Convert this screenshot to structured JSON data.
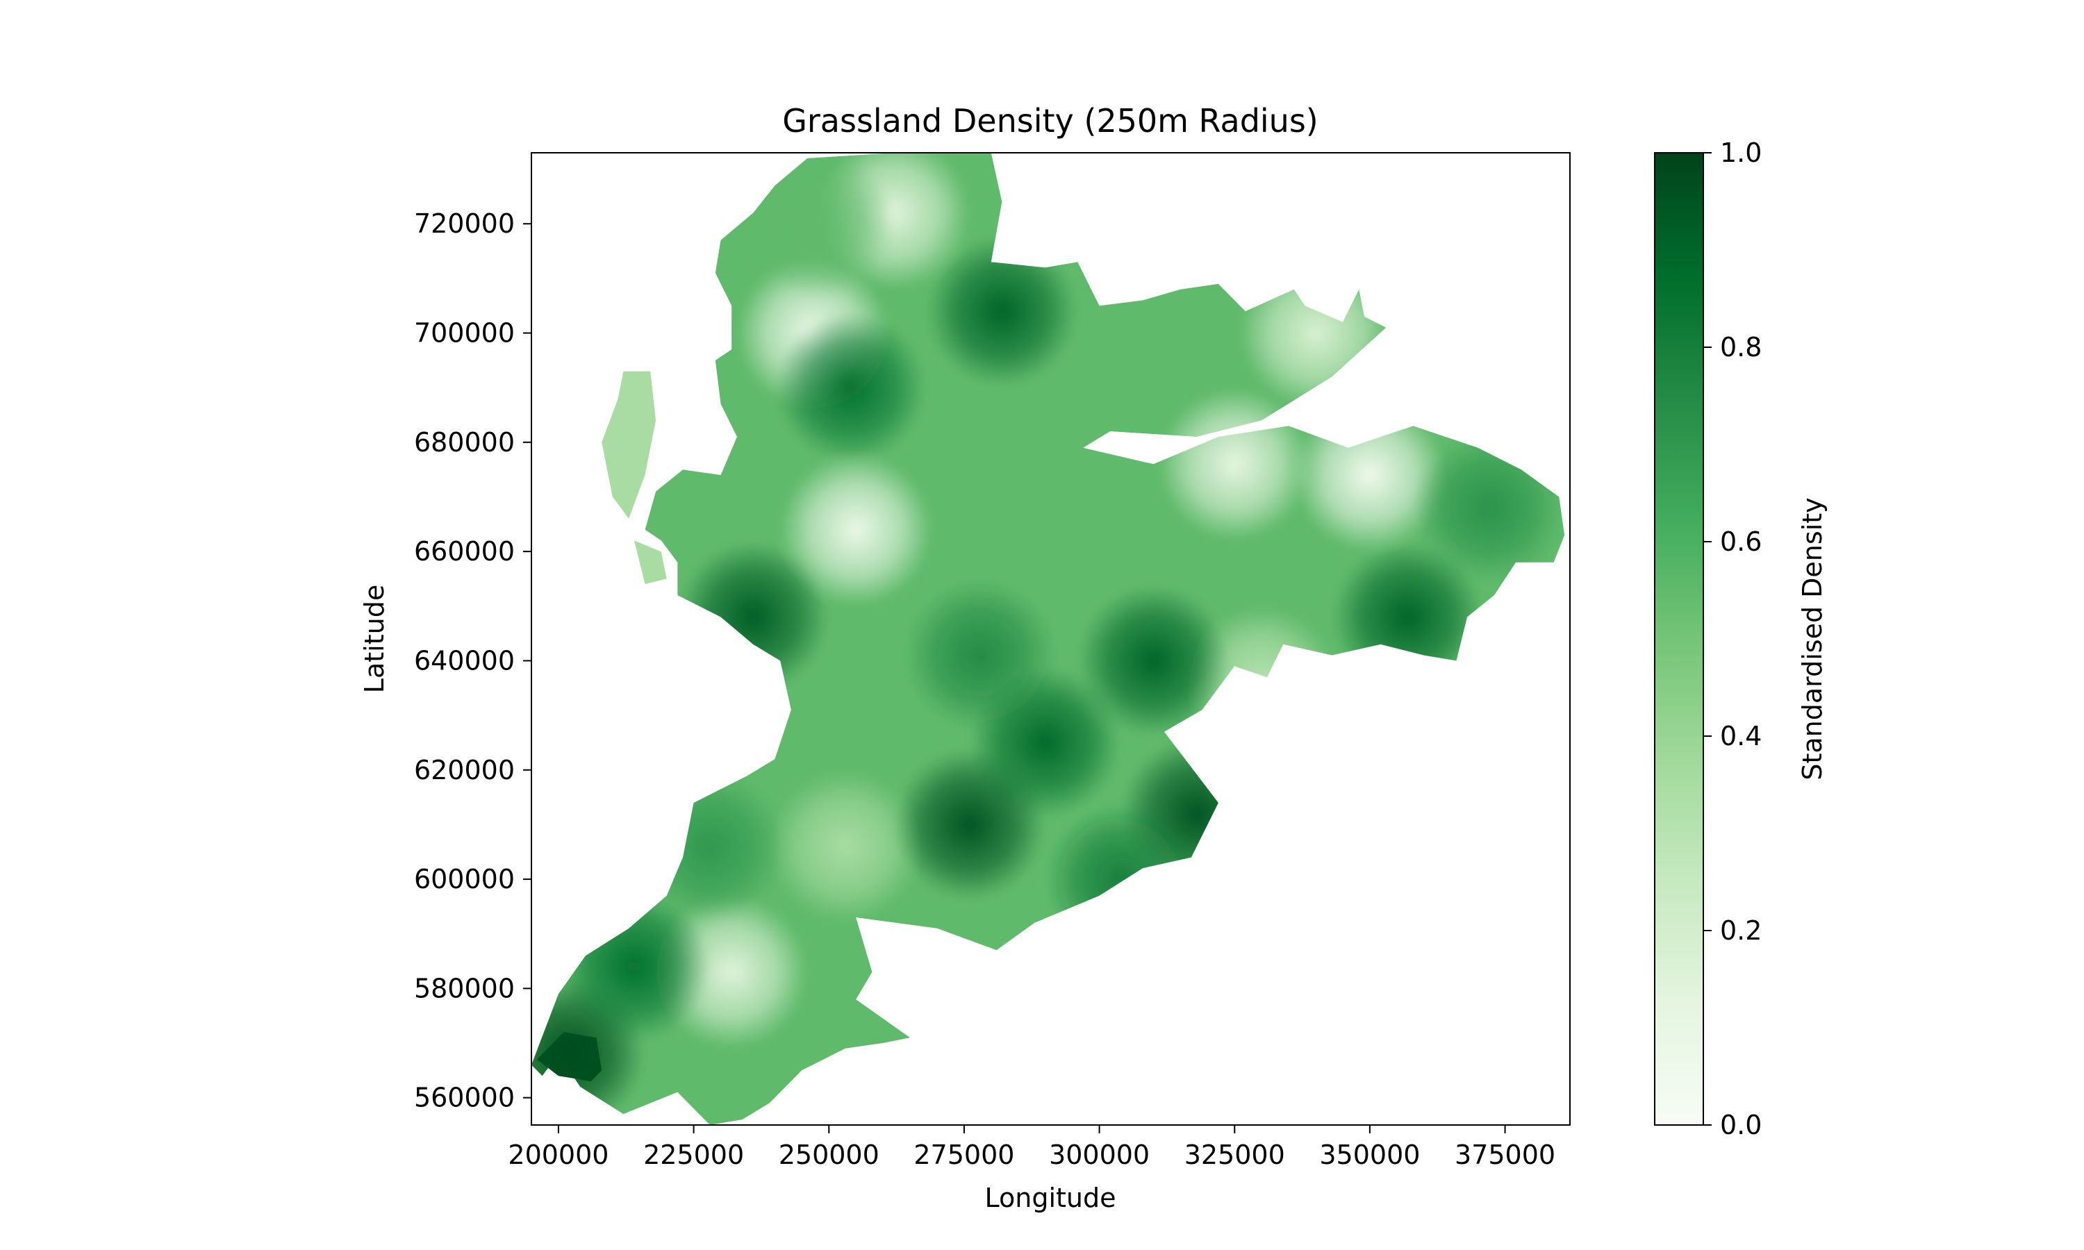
{
  "chart_data": {
    "type": "heatmap",
    "title": "Grassland Density (250m Radius)",
    "xlabel": "Longitude",
    "ylabel": "Latitude",
    "xlim": [
      195000,
      387000
    ],
    "ylim": [
      555000,
      733000
    ],
    "xticks": [
      200000,
      225000,
      250000,
      275000,
      300000,
      325000,
      350000,
      375000
    ],
    "yticks": [
      560000,
      580000,
      600000,
      620000,
      640000,
      660000,
      680000,
      700000,
      720000
    ],
    "grid": false,
    "colormap": "Greens",
    "colors": [
      "#f7fcf5",
      "#e5f5e0",
      "#c7e9c0",
      "#a1d99b",
      "#74c476",
      "#41ab5d",
      "#238b45",
      "#006d2c",
      "#00441b"
    ],
    "colorbar": {
      "label": "Standardised Density",
      "min": 0.0,
      "max": 1.0,
      "ticks": [
        0.0,
        0.2,
        0.4,
        0.6,
        0.8,
        1.0
      ],
      "tick_labels": [
        "0.0",
        "0.2",
        "0.4",
        "0.6",
        "0.8",
        "1.0"
      ]
    },
    "region_outline": [
      [
        246000,
        732000
      ],
      [
        262000,
        733000
      ],
      [
        274000,
        734500
      ],
      [
        280000,
        733000
      ],
      [
        282000,
        724000
      ],
      [
        280000,
        713000
      ],
      [
        290000,
        712000
      ],
      [
        296000,
        713000
      ],
      [
        300000,
        705000
      ],
      [
        308000,
        706000
      ],
      [
        315000,
        708000
      ],
      [
        322000,
        709000
      ],
      [
        327000,
        704000
      ],
      [
        336000,
        708000
      ],
      [
        338000,
        705000
      ],
      [
        345000,
        702000
      ],
      [
        348000,
        708000
      ],
      [
        349000,
        703000
      ],
      [
        353000,
        701000
      ],
      [
        343000,
        692000
      ],
      [
        330000,
        684000
      ],
      [
        318000,
        681000
      ],
      [
        302000,
        682000
      ],
      [
        297000,
        679000
      ],
      [
        310000,
        676000
      ],
      [
        322000,
        681000
      ],
      [
        335000,
        683000
      ],
      [
        346000,
        679000
      ],
      [
        358000,
        683000
      ],
      [
        370000,
        679000
      ],
      [
        378000,
        675000
      ],
      [
        385000,
        670000
      ],
      [
        386000,
        663000
      ],
      [
        384000,
        658000
      ],
      [
        377000,
        658000
      ],
      [
        373000,
        652000
      ],
      [
        368000,
        648000
      ],
      [
        366000,
        640000
      ],
      [
        360000,
        641000
      ],
      [
        352000,
        643000
      ],
      [
        343000,
        641000
      ],
      [
        334000,
        643000
      ],
      [
        331000,
        637000
      ],
      [
        325000,
        639000
      ],
      [
        319000,
        631000
      ],
      [
        312000,
        627000
      ],
      [
        322000,
        614000
      ],
      [
        317000,
        604000
      ],
      [
        308000,
        602000
      ],
      [
        300000,
        597000
      ],
      [
        288000,
        592000
      ],
      [
        281000,
        587000
      ],
      [
        270000,
        591000
      ],
      [
        255000,
        593000
      ],
      [
        258000,
        583000
      ],
      [
        255000,
        578000
      ],
      [
        265000,
        571000
      ],
      [
        260000,
        570000
      ],
      [
        253000,
        569000
      ],
      [
        245000,
        565000
      ],
      [
        239000,
        559000
      ],
      [
        234000,
        556000
      ],
      [
        228000,
        555000
      ],
      [
        222000,
        561000
      ],
      [
        212000,
        557000
      ],
      [
        204000,
        562000
      ],
      [
        200000,
        568000
      ],
      [
        197000,
        564000
      ],
      [
        195000,
        566000
      ],
      [
        200000,
        579000
      ],
      [
        205000,
        586000
      ],
      [
        213000,
        591000
      ],
      [
        220000,
        597000
      ],
      [
        223000,
        604000
      ],
      [
        225000,
        614000
      ],
      [
        235000,
        619000
      ],
      [
        240000,
        622000
      ],
      [
        243000,
        631000
      ],
      [
        241000,
        640000
      ],
      [
        236000,
        643000
      ],
      [
        230000,
        648000
      ],
      [
        222000,
        652000
      ],
      [
        222000,
        658000
      ],
      [
        219000,
        662000
      ],
      [
        216000,
        664000
      ],
      [
        218000,
        671000
      ],
      [
        223000,
        675000
      ],
      [
        230000,
        674000
      ],
      [
        233000,
        681000
      ],
      [
        230000,
        687000
      ],
      [
        229000,
        695000
      ],
      [
        232000,
        697000
      ],
      [
        232000,
        705000
      ],
      [
        229000,
        711000
      ],
      [
        230000,
        717000
      ],
      [
        236000,
        722000
      ],
      [
        240000,
        727000
      ]
    ],
    "islands": [
      [
        [
          211000,
          688000
        ],
        [
          212000,
          693000
        ],
        [
          217000,
          693000
        ],
        [
          218000,
          684000
        ],
        [
          216000,
          674000
        ],
        [
          213000,
          666000
        ],
        [
          210000,
          670000
        ],
        [
          208000,
          680000
        ]
      ],
      [
        [
          214000,
          662000
        ],
        [
          219000,
          660000
        ],
        [
          220000,
          655000
        ],
        [
          216000,
          654000
        ]
      ],
      [
        [
          196000,
          567000
        ],
        [
          201000,
          572000
        ],
        [
          207000,
          571000
        ],
        [
          208000,
          565000
        ],
        [
          206000,
          563000
        ],
        [
          200000,
          564000
        ]
      ]
    ],
    "density_peaks": [
      {
        "x": 236000,
        "y": 648000,
        "value": 0.92
      },
      {
        "x": 276000,
        "y": 610000,
        "value": 0.95
      },
      {
        "x": 290000,
        "y": 625000,
        "value": 0.88
      },
      {
        "x": 310000,
        "y": 640000,
        "value": 0.9
      },
      {
        "x": 282000,
        "y": 704000,
        "value": 0.9
      },
      {
        "x": 254000,
        "y": 690000,
        "value": 0.85
      },
      {
        "x": 357000,
        "y": 648000,
        "value": 0.9
      },
      {
        "x": 318000,
        "y": 612000,
        "value": 0.95
      },
      {
        "x": 202000,
        "y": 568000,
        "value": 0.97
      },
      {
        "x": 214000,
        "y": 584000,
        "value": 0.85
      },
      {
        "x": 278000,
        "y": 641000,
        "value": 0.75
      },
      {
        "x": 372000,
        "y": 668000,
        "value": 0.72
      },
      {
        "x": 228000,
        "y": 606000,
        "value": 0.7
      },
      {
        "x": 248000,
        "y": 720000,
        "value": 0.55
      },
      {
        "x": 304000,
        "y": 600000,
        "value": 0.8
      }
    ],
    "density_lows": [
      {
        "x": 247000,
        "y": 700000,
        "value": 0.08
      },
      {
        "x": 255000,
        "y": 664000,
        "value": 0.08
      },
      {
        "x": 350000,
        "y": 674000,
        "value": 0.05
      },
      {
        "x": 325000,
        "y": 676000,
        "value": 0.12
      },
      {
        "x": 232000,
        "y": 583000,
        "value": 0.15
      },
      {
        "x": 262000,
        "y": 722000,
        "value": 0.15
      },
      {
        "x": 340000,
        "y": 700000,
        "value": 0.18
      },
      {
        "x": 253000,
        "y": 606000,
        "value": 0.35
      },
      {
        "x": 330000,
        "y": 636000,
        "value": 0.3
      }
    ]
  }
}
